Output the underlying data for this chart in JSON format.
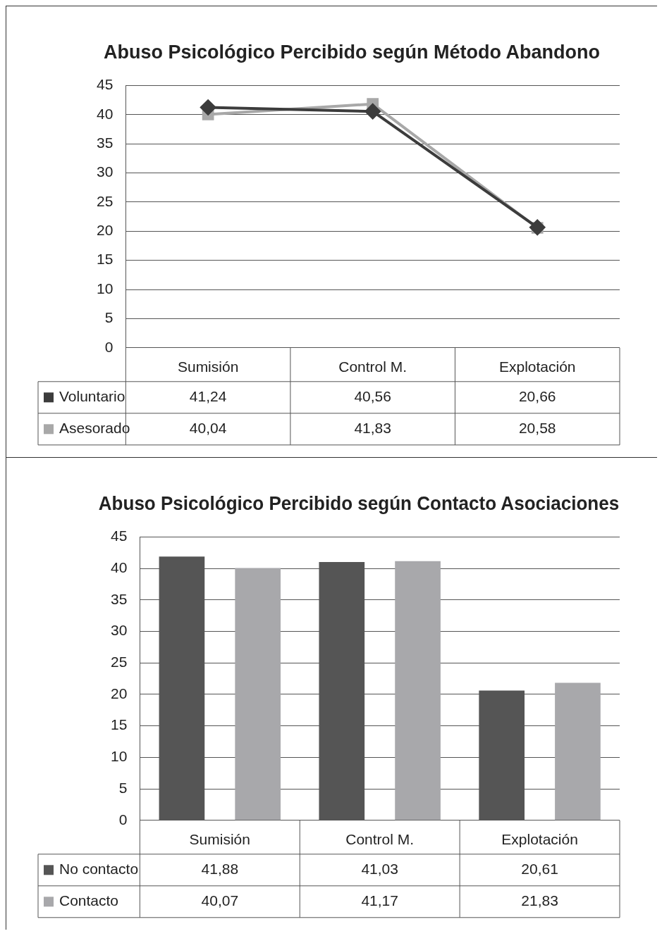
{
  "chart_data": [
    {
      "type": "line",
      "title": "Abuso Psicológico Percibido según Método Abandono",
      "categories": [
        "Sumisión",
        "Control M.",
        "Explotación"
      ],
      "series": [
        {
          "name": "Voluntario",
          "color": "#3c3c3c",
          "marker": "diamond",
          "values": [
            41.24,
            40.56,
            20.66
          ],
          "value_labels": [
            "41,24",
            "40,56",
            "20,66"
          ]
        },
        {
          "name": "Asesorado",
          "color": "#a8a8a8",
          "marker": "square",
          "values": [
            40.04,
            41.83,
            20.58
          ],
          "value_labels": [
            "40,04",
            "41,83",
            "20,58"
          ]
        }
      ],
      "ylim": [
        0,
        45
      ],
      "yticks": [
        0,
        5,
        10,
        15,
        20,
        25,
        30,
        35,
        40,
        45
      ],
      "grid": "y",
      "legend": "bottom"
    },
    {
      "type": "bar",
      "title": "Abuso Psicológico Percibido según Contacto Asociaciones",
      "categories": [
        "Sumisión",
        "Control M.",
        "Explotación"
      ],
      "series": [
        {
          "name": "No contacto",
          "color": "#555555",
          "values": [
            41.88,
            41.03,
            20.61
          ],
          "value_labels": [
            "41,88",
            "41,03",
            "20,61"
          ]
        },
        {
          "name": "Contacto",
          "color": "#a8a8ab",
          "values": [
            40.07,
            41.17,
            21.83
          ],
          "value_labels": [
            "40,07",
            "41,17",
            "21,83"
          ]
        }
      ],
      "ylim": [
        0,
        45
      ],
      "yticks": [
        0,
        5,
        10,
        15,
        20,
        25,
        30,
        35,
        40,
        45
      ],
      "grid": "y",
      "legend": "bottom"
    }
  ]
}
